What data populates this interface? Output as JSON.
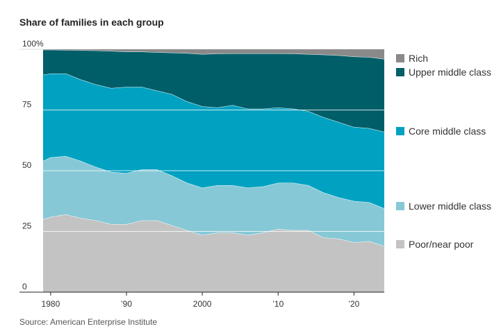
{
  "chart_data": {
    "type": "stacked-area",
    "title": "Share of families in each group",
    "source": "Source: American Enterprise Institute",
    "x": [
      1979,
      1980,
      1982,
      1984,
      1986,
      1988,
      1990,
      1992,
      1994,
      1996,
      1998,
      2000,
      2002,
      2004,
      2006,
      2008,
      2010,
      2012,
      2014,
      2016,
      2018,
      2020,
      2022,
      2024
    ],
    "xlim": [
      1979,
      2024
    ],
    "xticks": [
      {
        "value": 1980,
        "label": "1980"
      },
      {
        "value": 1990,
        "label": "’90"
      },
      {
        "value": 2000,
        "label": "2000"
      },
      {
        "value": 2010,
        "label": "’10"
      },
      {
        "value": 2020,
        "label": "’20"
      }
    ],
    "ylim": [
      0,
      100
    ],
    "yticks": [
      0,
      25,
      50,
      75,
      {
        "value": 100,
        "label": "100%"
      }
    ],
    "grid": true,
    "series": [
      {
        "name": "Poor/near poor",
        "color": "#c3c3c3",
        "values": [
          30,
          31,
          32,
          30.5,
          29.5,
          28,
          28,
          29.5,
          29.5,
          27.5,
          25.5,
          23.5,
          24.5,
          24.5,
          23.5,
          24.5,
          26,
          25.5,
          25.5,
          22.5,
          22,
          20.5,
          21,
          19
        ]
      },
      {
        "name": "Lower middle class",
        "color": "#86c8d6",
        "values": [
          24,
          24.5,
          24,
          23.5,
          22,
          21.5,
          21,
          21,
          21,
          20.5,
          19.5,
          19.5,
          19.5,
          19.5,
          19.5,
          19,
          19,
          19.5,
          18.5,
          18.5,
          17,
          17,
          16,
          15.5
        ]
      },
      {
        "name": "Core middle class",
        "color": "#00a1c1",
        "values": [
          35.5,
          34.5,
          34,
          33.5,
          34,
          34.5,
          35.5,
          34,
          32.5,
          33.5,
          33.5,
          33.5,
          32,
          33,
          32.5,
          32,
          31,
          30.5,
          30.5,
          31,
          31,
          30.5,
          30.5,
          31.5
        ]
      },
      {
        "name": "Upper middle class",
        "color": "#005e69",
        "values": [
          10.3,
          9.8,
          9.7,
          12.1,
          14,
          15.3,
          14.5,
          14.5,
          15.8,
          17.1,
          19.9,
          21.5,
          22.2,
          21.3,
          22.8,
          22.8,
          22.3,
          22.7,
          23.5,
          25.8,
          27.5,
          29,
          29.3,
          30
        ]
      },
      {
        "name": "Rich",
        "color": "#8a8a8a",
        "values": [
          0.2,
          0.2,
          0.3,
          0.4,
          0.5,
          0.7,
          1,
          1,
          1.2,
          1.4,
          1.6,
          2,
          1.8,
          1.7,
          1.7,
          1.7,
          1.7,
          1.8,
          2,
          2.2,
          2.5,
          3,
          3.2,
          4
        ]
      }
    ]
  }
}
